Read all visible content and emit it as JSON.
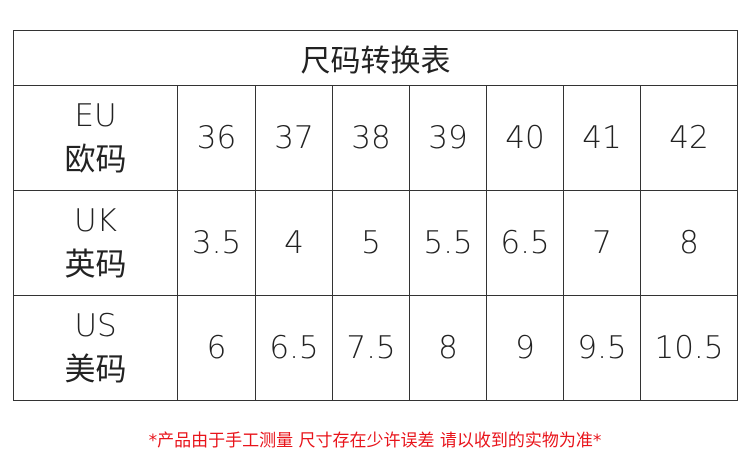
{
  "title": "尺码转换表",
  "rows": [
    {
      "label_en": "EU",
      "label_cn": "欧码",
      "values": [
        "36",
        "37",
        "38",
        "39",
        "40",
        "41",
        "42"
      ]
    },
    {
      "label_en": "UK",
      "label_cn": "英码",
      "values": [
        "3.5",
        "4",
        "5",
        "5.5",
        "6.5",
        "7",
        "8"
      ]
    },
    {
      "label_en": "US",
      "label_cn": "美码",
      "values": [
        "6",
        "6.5",
        "7.5",
        "8",
        "9",
        "9.5",
        "10.5"
      ]
    }
  ],
  "note": "*产品由于手工测量 尺寸存在少许误差 请以收到的实物为准*",
  "colors": {
    "note": "#e8141b",
    "border": "#333333"
  }
}
